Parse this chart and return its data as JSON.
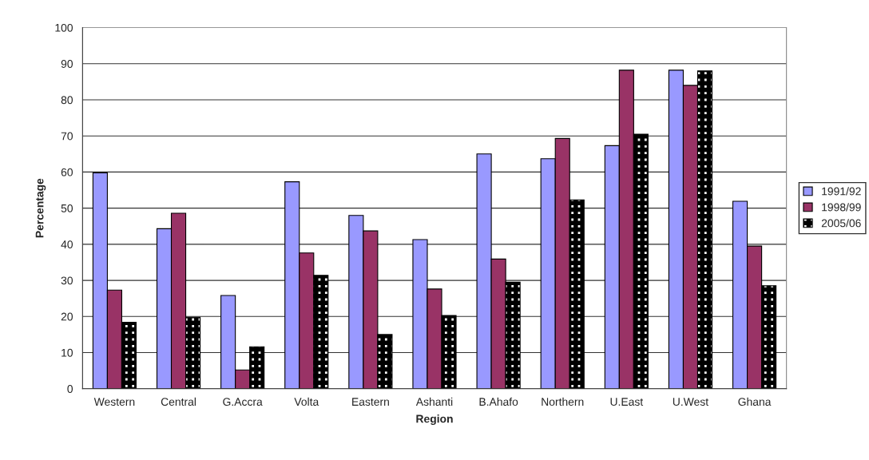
{
  "chart_data": {
    "type": "bar",
    "xlabel": "Region",
    "ylabel": "Percentage",
    "categories": [
      "Western",
      "Central",
      "G.Accra",
      "Volta",
      "Eastern",
      "Ashanti",
      "B.Ahafo",
      "Northern",
      "U.East",
      "U.West",
      "Ghana"
    ],
    "series": [
      {
        "name": "1991/92",
        "color": "#9999ff",
        "values": [
          59.8,
          44.3,
          25.8,
          57.3,
          48.0,
          41.3,
          65.0,
          63.7,
          67.3,
          88.2,
          51.9
        ]
      },
      {
        "name": "1998/99",
        "color": "#993366",
        "values": [
          27.3,
          48.6,
          5.2,
          37.6,
          43.7,
          27.6,
          35.9,
          69.3,
          88.2,
          84.0,
          39.5
        ]
      },
      {
        "name": "2005/06",
        "color": "#000000",
        "values": [
          18.4,
          19.8,
          11.6,
          31.4,
          15.0,
          20.3,
          29.5,
          52.3,
          70.5,
          88.0,
          28.5
        ]
      }
    ],
    "ylim": [
      0,
      100
    ],
    "yticks": [
      0,
      10,
      20,
      30,
      40,
      50,
      60,
      70,
      80,
      90,
      100
    ],
    "grid": "y",
    "legend": "right"
  }
}
